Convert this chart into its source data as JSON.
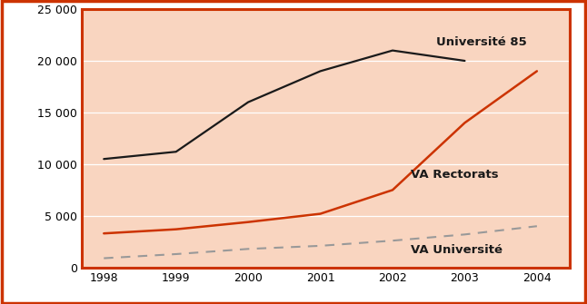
{
  "years": [
    1998,
    1999,
    2000,
    2001,
    2002,
    2003,
    2004
  ],
  "universite85": [
    10500,
    11200,
    16000,
    19000,
    21000,
    20000,
    null
  ],
  "va_rectorats": [
    3300,
    3700,
    4400,
    5200,
    7500,
    14000,
    19000
  ],
  "va_universite": [
    900,
    1300,
    1800,
    2100,
    2600,
    3200,
    4000
  ],
  "line_color_univ85": "#1a1a1a",
  "line_color_vae_rect": "#cc3300",
  "line_color_vae_univ": "#999999",
  "background_color": "#f9d5c0",
  "border_color": "#cc3300",
  "outer_bg": "#ffffff",
  "label_univ85": "Université 85",
  "label_va_rectorats": "VA Rectorats",
  "label_va_universite": "VA Université",
  "ylim": [
    0,
    25000
  ],
  "yticks": [
    0,
    5000,
    10000,
    15000,
    20000,
    25000
  ],
  "ytick_labels": [
    "0",
    "5 000",
    "10 000",
    "15 000",
    "20 000",
    "25 000"
  ],
  "grid_color": "#ffffff",
  "label_fontsize": 9.5,
  "tick_fontsize": 9
}
